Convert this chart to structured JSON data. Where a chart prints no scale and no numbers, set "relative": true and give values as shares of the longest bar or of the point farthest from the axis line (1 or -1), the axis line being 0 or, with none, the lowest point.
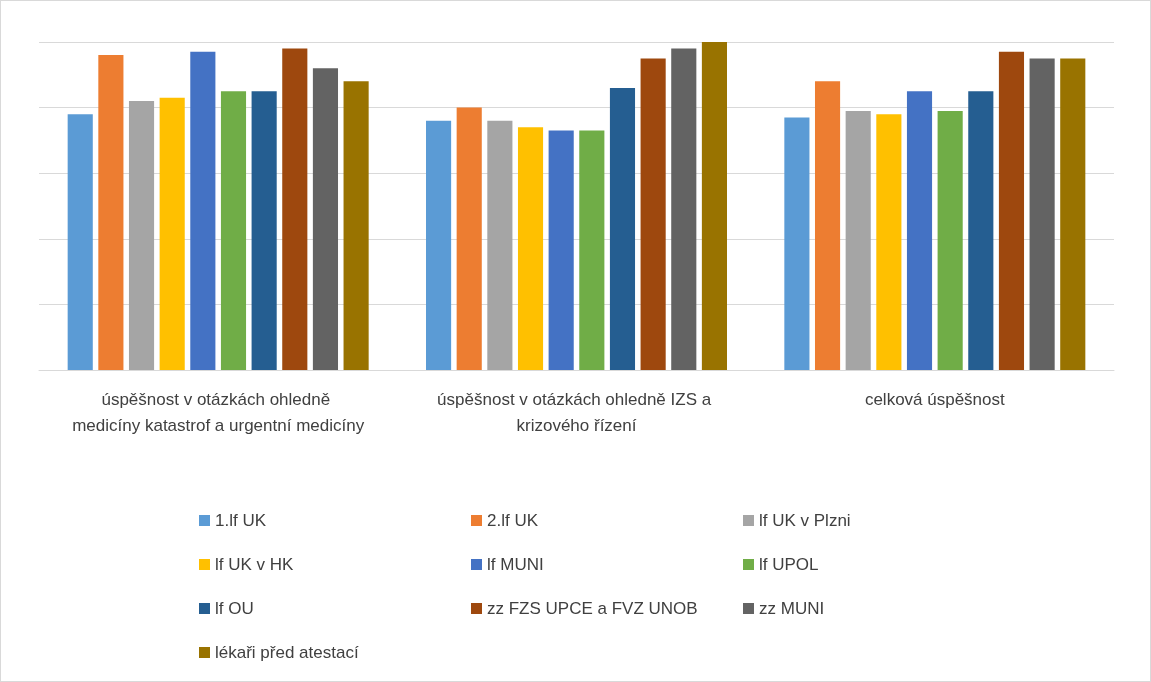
{
  "chart_data": {
    "type": "bar",
    "relative": true,
    "grid": "y",
    "legend": "bottom",
    "categories": [
      "úspěšnost v otázkách ohledně medicíny katastrof a urgentní medicíny",
      "úspěšnost v otázkách ohledně IZS a krizového řízení",
      "celková úspěšnost"
    ],
    "series": [
      {
        "name": "1.lf UK",
        "color": "#5b9bd5",
        "values": [
          0.78,
          0.76,
          0.77
        ]
      },
      {
        "name": "2.lf UK",
        "color": "#ed7d31",
        "values": [
          0.96,
          0.8,
          0.88
        ]
      },
      {
        "name": "lf UK v Plzni",
        "color": "#a5a5a5",
        "values": [
          0.82,
          0.76,
          0.79
        ]
      },
      {
        "name": "lf UK v HK",
        "color": "#ffc000",
        "values": [
          0.83,
          0.74,
          0.78
        ]
      },
      {
        "name": "lf MUNI",
        "color": "#4472c4",
        "values": [
          0.97,
          0.73,
          0.85
        ]
      },
      {
        "name": "lf UPOL",
        "color": "#70ad47",
        "values": [
          0.85,
          0.73,
          0.79
        ]
      },
      {
        "name": "lf OU",
        "color": "#255e91",
        "values": [
          0.85,
          0.86,
          0.85
        ]
      },
      {
        "name": "zz FZS UPCE a FVZ UNOB",
        "color": "#9e480e",
        "values": [
          0.98,
          0.95,
          0.97
        ]
      },
      {
        "name": "zz MUNI",
        "color": "#636363",
        "values": [
          0.92,
          0.98,
          0.95
        ]
      },
      {
        "name": "lékaři před atestací",
        "color": "#997300",
        "values": [
          0.88,
          1,
          0.95
        ]
      }
    ]
  }
}
